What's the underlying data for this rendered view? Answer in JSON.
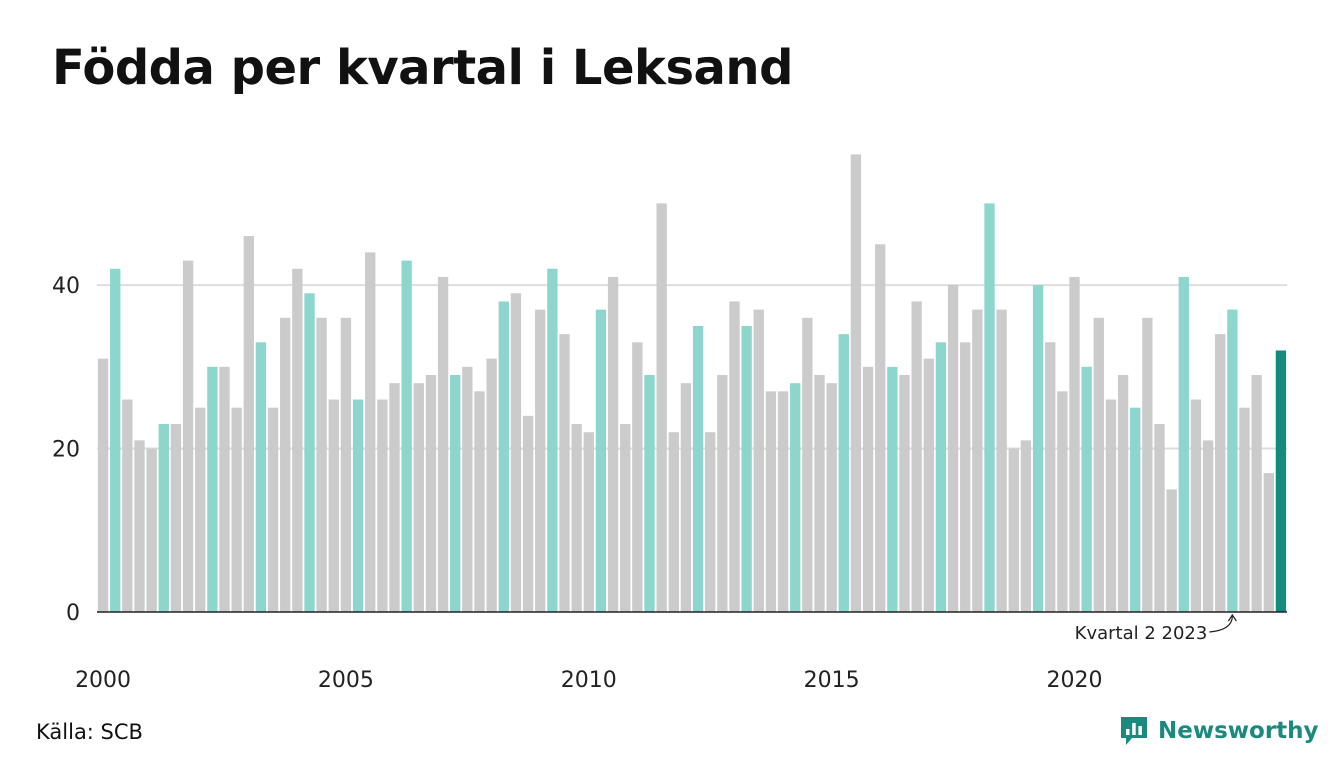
{
  "title": "Födda per kvartal i Leksand",
  "source": "Källa: SCB",
  "brand": "Newsworthy",
  "colors": {
    "bar_default": "#cbcbcb",
    "bar_q2": "#8dd6cd",
    "bar_latest": "#138a7d",
    "grid": "#dddddd",
    "axis": "#222222",
    "brand": "#1a8a7e"
  },
  "chart_data": {
    "type": "bar",
    "title": "Födda per kvartal i Leksand",
    "xlabel": "",
    "ylabel": "",
    "ylim": [
      0,
      58
    ],
    "yticks": [
      0,
      20,
      40
    ],
    "xtick_labels": [
      "2000",
      "2005",
      "2010",
      "2015",
      "2020"
    ],
    "grid": true,
    "start": "2000 Q1",
    "highlight_quarter": 2,
    "annotation": "Kvartal 2 2023",
    "values": [
      31,
      42,
      26,
      21,
      20,
      23,
      23,
      43,
      25,
      30,
      30,
      25,
      46,
      33,
      25,
      36,
      42,
      39,
      36,
      26,
      36,
      26,
      44,
      26,
      28,
      43,
      28,
      29,
      41,
      29,
      30,
      27,
      31,
      38,
      39,
      24,
      37,
      42,
      34,
      23,
      22,
      37,
      41,
      23,
      33,
      29,
      50,
      22,
      28,
      35,
      22,
      29,
      38,
      35,
      37,
      27,
      27,
      28,
      36,
      29,
      28,
      34,
      56,
      30,
      45,
      30,
      29,
      38,
      31,
      33,
      40,
      33,
      37,
      50,
      37,
      20,
      21,
      40,
      33,
      27,
      41,
      30,
      36,
      26,
      29,
      25,
      36,
      23,
      15,
      41,
      26,
      21,
      34,
      37,
      25,
      29,
      17,
      32
    ]
  }
}
